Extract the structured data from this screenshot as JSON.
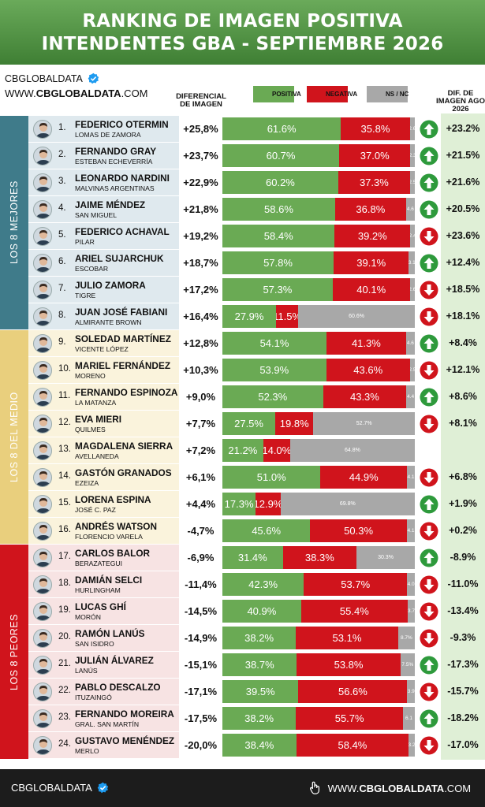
{
  "header": {
    "title_line1": "RANKING DE IMAGEN POSITIVA",
    "title_line2": "INTENDENTES GBA - SEPTIEMBRE 2026"
  },
  "brand": {
    "name": "CBGLOBALDATA",
    "url_prefix": "WWW.",
    "url_bold": "CBGLOBALDATA",
    "url_suffix": ".COM"
  },
  "columns": {
    "diferencial_line1": "DIFERENCIAL",
    "diferencial_line2": "DE IMAGEN",
    "legend_positiva": "POSITIVA",
    "legend_negativa": "NEGATIVA",
    "legend_nsnc": "NS / NC",
    "dif_line1": "DIF. DE",
    "dif_line2": "IMAGEN AGO",
    "dif_line3": "2026"
  },
  "colors": {
    "positiva": "#6aaa54",
    "negativa": "#d0141c",
    "nsnc": "#a8a8a8",
    "group_mejores": "#3f7b8a",
    "group_medio": "#e9cf7d",
    "group_peores": "#d0141c"
  },
  "groups": [
    {
      "label": "LOS 8 MEJORES"
    },
    {
      "label": "LOS 8 DEL MEDIO"
    },
    {
      "label": "LOS 8 PEORES"
    }
  ],
  "footer": {
    "left": "CBGLOBALDATA",
    "right_prefix": "WWW.",
    "right_bold": "CBGLOBALDATA",
    "right_suffix": ".COM"
  },
  "chart_data": {
    "type": "bar",
    "stacked": true,
    "title": "RANKING DE IMAGEN POSITIVA INTENDENTES GBA - SEPTIEMBRE 2026",
    "series_names": [
      "POSITIVA",
      "NEGATIVA",
      "NS / NC"
    ],
    "rows": [
      {
        "rank": "1.",
        "name": "FEDERICO OTERMIN",
        "muni": "LOMAS DE ZAMORA",
        "diff": "+25,8%",
        "pos": 61.6,
        "neg": 35.8,
        "ns": 2.6,
        "pos_label": "61.6%",
        "neg_label": "35.8%",
        "ns_label": "2.6",
        "trend": "up",
        "dif_ago": "+23.2%",
        "group": 0
      },
      {
        "rank": "2.",
        "name": "FERNANDO GRAY",
        "muni": "ESTEBAN ECHEVERRÍA",
        "diff": "+23,7%",
        "pos": 60.7,
        "neg": 37.0,
        "ns": 2.3,
        "pos_label": "60.7%",
        "neg_label": "37.0%",
        "ns_label": "2.3",
        "trend": "up",
        "dif_ago": "+21.5%",
        "group": 0
      },
      {
        "rank": "3.",
        "name": "LEONARDO NARDINI",
        "muni": "MALVINAS ARGENTINAS",
        "diff": "+22,9%",
        "pos": 60.2,
        "neg": 37.3,
        "ns": 2.5,
        "pos_label": "60.2%",
        "neg_label": "37.3%",
        "ns_label": "2.5",
        "trend": "up",
        "dif_ago": "+21.6%",
        "group": 0
      },
      {
        "rank": "4.",
        "name": "JAIME MÉNDEZ",
        "muni": "SAN MIGUEL",
        "diff": "+21,8%",
        "pos": 58.6,
        "neg": 36.8,
        "ns": 4.6,
        "pos_label": "58.6%",
        "neg_label": "36.8%",
        "ns_label": "4.6",
        "trend": "up",
        "dif_ago": "+20.5%",
        "group": 0
      },
      {
        "rank": "5.",
        "name": "FEDERICO ACHAVAL",
        "muni": "PILAR",
        "diff": "+19,2%",
        "pos": 58.4,
        "neg": 39.2,
        "ns": 2.4,
        "pos_label": "58.4%",
        "neg_label": "39.2%",
        "ns_label": "2.4",
        "trend": "down",
        "dif_ago": "+23.6%",
        "group": 0
      },
      {
        "rank": "6.",
        "name": "ARIEL SUJARCHUK",
        "muni": "ESCOBAR",
        "diff": "+18,7%",
        "pos": 57.8,
        "neg": 39.1,
        "ns": 3.1,
        "pos_label": "57.8%",
        "neg_label": "39.1%",
        "ns_label": "3.1",
        "trend": "up",
        "dif_ago": "+12.4%",
        "group": 0
      },
      {
        "rank": "7.",
        "name": "JULIO ZAMORA",
        "muni": "TIGRE",
        "diff": "+17,2%",
        "pos": 57.3,
        "neg": 40.1,
        "ns": 2.6,
        "pos_label": "57.3%",
        "neg_label": "40.1%",
        "ns_label": "2.6",
        "trend": "down",
        "dif_ago": "+18.5%",
        "group": 0
      },
      {
        "rank": "8.",
        "name": "JUAN JOSÉ FABIANI",
        "muni": "ALMIRANTE BROWN",
        "diff": "+16,4%",
        "pos": 27.9,
        "neg": 11.5,
        "ns": 60.6,
        "pos_label": "27.9%",
        "neg_label": "11.5%",
        "ns_label": "60.6%",
        "trend": "down",
        "dif_ago": "+18.1%",
        "group": 0
      },
      {
        "rank": "9.",
        "name": "SOLEDAD MARTÍNEZ",
        "muni": "VICENTE LÓPEZ",
        "diff": "+12,8%",
        "pos": 54.1,
        "neg": 41.3,
        "ns": 4.6,
        "pos_label": "54.1%",
        "neg_label": "41.3%",
        "ns_label": "4.6",
        "trend": "up",
        "dif_ago": "+8.4%",
        "group": 1
      },
      {
        "rank": "10.",
        "name": "MARIEL FERNÁNDEZ",
        "muni": "MORENO",
        "diff": "+10,3%",
        "pos": 53.9,
        "neg": 43.6,
        "ns": 2.5,
        "pos_label": "53.9%",
        "neg_label": "43.6%",
        "ns_label": "2.5",
        "trend": "down",
        "dif_ago": "+12.1%",
        "group": 1
      },
      {
        "rank": "11.",
        "name": "FERNANDO ESPINOZA",
        "muni": "LA MATANZA",
        "diff": "+9,0%",
        "pos": 52.3,
        "neg": 43.3,
        "ns": 4.4,
        "pos_label": "52.3%",
        "neg_label": "43.3%",
        "ns_label": "4.4",
        "trend": "up",
        "dif_ago": "+8.6%",
        "group": 1
      },
      {
        "rank": "12.",
        "name": "EVA MIERI",
        "muni": "QUILMES",
        "diff": "+7,7%",
        "pos": 27.5,
        "neg": 19.8,
        "ns": 52.7,
        "pos_label": "27.5%",
        "neg_label": "19.8%",
        "ns_label": "52.7%",
        "trend": "down",
        "dif_ago": "+8.1%",
        "group": 1
      },
      {
        "rank": "13.",
        "name": "MAGDALENA SIERRA",
        "muni": "AVELLANEDA",
        "diff": "+7,2%",
        "pos": 21.2,
        "neg": 14.0,
        "ns": 64.8,
        "pos_label": "21.2%",
        "neg_label": "14.0%",
        "ns_label": "64.8%",
        "trend": "none",
        "dif_ago": "",
        "group": 1
      },
      {
        "rank": "14.",
        "name": "GASTÓN GRANADOS",
        "muni": "EZEIZA",
        "diff": "+6,1%",
        "pos": 51.0,
        "neg": 44.9,
        "ns": 4.1,
        "pos_label": "51.0%",
        "neg_label": "44.9%",
        "ns_label": "4.1",
        "trend": "down",
        "dif_ago": "+6.8%",
        "group": 1
      },
      {
        "rank": "15.",
        "name": "LORENA ESPINA",
        "muni": "JOSÉ C. PAZ",
        "diff": "+4,4%",
        "pos": 17.3,
        "neg": 12.9,
        "ns": 69.8,
        "pos_label": "17.3%",
        "neg_label": "12.9%",
        "ns_label": "69.8%",
        "trend": "up",
        "dif_ago": "+1.9%",
        "group": 1
      },
      {
        "rank": "16.",
        "name": "ANDRÉS WATSON",
        "muni": "FLORENCIO VARELA",
        "diff": "-4,7%",
        "pos": 45.6,
        "neg": 50.3,
        "ns": 4.1,
        "pos_label": "45.6%",
        "neg_label": "50.3%",
        "ns_label": "4.1",
        "trend": "down",
        "dif_ago": "+0.2%",
        "group": 1
      },
      {
        "rank": "17.",
        "name": "CARLOS BALOR",
        "muni": "BERAZATEGUI",
        "diff": "-6,9%",
        "pos": 31.4,
        "neg": 38.3,
        "ns": 30.3,
        "pos_label": "31.4%",
        "neg_label": "38.3%",
        "ns_label": "30.3%",
        "trend": "up",
        "dif_ago": "-8.9%",
        "group": 2
      },
      {
        "rank": "18.",
        "name": "DAMIÁN SELCI",
        "muni": "HURLINGHAM",
        "diff": "-11,4%",
        "pos": 42.3,
        "neg": 53.7,
        "ns": 4.0,
        "pos_label": "42.3%",
        "neg_label": "53.7%",
        "ns_label": "4.0",
        "trend": "down",
        "dif_ago": "-11.0%",
        "group": 2
      },
      {
        "rank": "19.",
        "name": "LUCAS GHÍ",
        "muni": "MORÓN",
        "diff": "-14,5%",
        "pos": 40.9,
        "neg": 55.4,
        "ns": 3.7,
        "pos_label": "40.9%",
        "neg_label": "55.4%",
        "ns_label": "3.7",
        "trend": "down",
        "dif_ago": "-13.4%",
        "group": 2
      },
      {
        "rank": "20.",
        "name": "RAMÓN LANÚS",
        "muni": "SAN ISIDRO",
        "diff": "-14,9%",
        "pos": 38.2,
        "neg": 53.1,
        "ns": 8.7,
        "pos_label": "38.2%",
        "neg_label": "53.1%",
        "ns_label": "8.7%",
        "trend": "down",
        "dif_ago": "-9.3%",
        "group": 2
      },
      {
        "rank": "21.",
        "name": "JULIÁN ÁLVAREZ",
        "muni": "LANÚS",
        "diff": "-15,1%",
        "pos": 38.7,
        "neg": 53.8,
        "ns": 7.5,
        "pos_label": "38.7%",
        "neg_label": "53.8%",
        "ns_label": "7.5%",
        "trend": "up",
        "dif_ago": "-17.3%",
        "group": 2
      },
      {
        "rank": "22.",
        "name": "PABLO DESCALZO",
        "muni": "ITUZAINGÓ",
        "diff": "-17,1%",
        "pos": 39.5,
        "neg": 56.6,
        "ns": 3.9,
        "pos_label": "39.5%",
        "neg_label": "56.6%",
        "ns_label": "3.9",
        "trend": "down",
        "dif_ago": "-15.7%",
        "group": 2
      },
      {
        "rank": "23.",
        "name": "FERNANDO MOREIRA",
        "muni": "GRAL. SAN MARTÍN",
        "diff": "-17,5%",
        "pos": 38.2,
        "neg": 55.7,
        "ns": 6.1,
        "pos_label": "38.2%",
        "neg_label": "55.7%",
        "ns_label": "6.1",
        "trend": "up",
        "dif_ago": "-18.2%",
        "group": 2
      },
      {
        "rank": "24.",
        "name": "GUSTAVO MENÉNDEZ",
        "muni": "MERLO",
        "diff": "-20,0%",
        "pos": 38.4,
        "neg": 58.4,
        "ns": 3.2,
        "pos_label": "38.4%",
        "neg_label": "58.4%",
        "ns_label": "3.2",
        "trend": "down",
        "dif_ago": "-17.0%",
        "group": 2
      }
    ]
  }
}
